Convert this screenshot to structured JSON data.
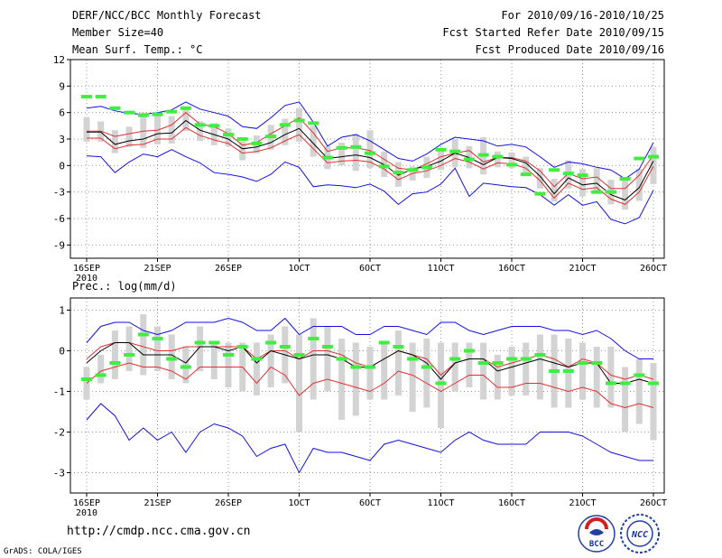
{
  "header": {
    "title": "DERF/NCC/BCC Monthly Forecast",
    "member_size": "Member Size=40",
    "forecast_range": "For 2010/09/16-2010/10/25",
    "fcst_started": "Fcst Started Refer Date 2010/09/15",
    "fcst_produced": "Fcst Produced Date 2010/09/16"
  },
  "footer": {
    "url": "http://cmdp.ncc.cma.gov.cn",
    "credit": "GrADS: COLA/IGES",
    "logo_left_text": "BCC",
    "logo_right_text": "NCC"
  },
  "colors": {
    "mean": "#000000",
    "ensemble_band": "#e03030",
    "extremes": "#1010e0",
    "observed": "#40ee40",
    "box": "#d3d3d3"
  },
  "chart_data": [
    {
      "type": "line",
      "title": "Mean Surf. Temp.: °C",
      "x_ticks": [
        "16SEP",
        "21SEP",
        "26SEP",
        "1OCT",
        "6OCT",
        "11OCT",
        "16OCT",
        "21OCT",
        "26OCT"
      ],
      "x_tick_index": [
        0,
        5,
        10,
        15,
        20,
        25,
        30,
        35,
        40
      ],
      "x_sublabel": "2010",
      "y_ticks": [
        12,
        9,
        6,
        3,
        0,
        -3,
        -6,
        -9
      ],
      "ylim": [
        -10.5,
        12
      ],
      "series": [
        {
          "name": "max",
          "color": "#1010e0",
          "values": [
            6.5,
            6.7,
            6.2,
            5.9,
            5.8,
            6.0,
            6.3,
            7.2,
            6.4,
            6.0,
            5.6,
            4.4,
            4.2,
            5.4,
            6.8,
            7.2,
            4.9,
            2.2,
            3.2,
            3.5,
            2.8,
            1.8,
            0.8,
            0.5,
            1.3,
            2.4,
            3.2,
            3.0,
            2.8,
            2.2,
            2.4,
            2.1,
            1.0,
            -0.2,
            0.4,
            0.2,
            -0.2,
            -0.5,
            -1.5,
            -0.4,
            2.6
          ]
        },
        {
          "name": "upper",
          "color": "#e03030",
          "values": [
            3.9,
            3.9,
            3.3,
            3.6,
            3.9,
            4.0,
            4.6,
            6.0,
            4.7,
            4.4,
            3.6,
            2.3,
            2.6,
            3.6,
            4.5,
            5.4,
            3.7,
            1.6,
            2.0,
            2.0,
            1.7,
            0.7,
            -0.3,
            -0.5,
            0.2,
            1.0,
            1.4,
            1.7,
            0.4,
            0.9,
            0.9,
            0.5,
            -0.6,
            -2.4,
            -0.9,
            -1.5,
            -1.3,
            -2.6,
            -2.6,
            -1.1,
            1.2
          ]
        },
        {
          "name": "mean",
          "color": "#000000",
          "values": [
            3.8,
            3.8,
            2.4,
            2.8,
            3.0,
            3.6,
            3.7,
            5.1,
            4.0,
            3.5,
            3.0,
            1.9,
            2.1,
            2.6,
            3.5,
            4.2,
            2.5,
            0.8,
            1.0,
            1.2,
            0.9,
            0.1,
            -1.1,
            -0.4,
            -0.1,
            0.5,
            1.4,
            0.9,
            0.1,
            0.9,
            0.8,
            0.3,
            -1.2,
            -3.2,
            -1.4,
            -2.2,
            -2.0,
            -3.3,
            -3.9,
            -2.5,
            0.5
          ]
        },
        {
          "name": "lower",
          "color": "#e03030",
          "values": [
            3.1,
            3.1,
            1.9,
            2.3,
            2.4,
            3.0,
            3.0,
            4.3,
            3.4,
            2.9,
            2.5,
            1.4,
            1.6,
            2.0,
            2.8,
            3.5,
            1.9,
            0.3,
            0.5,
            0.6,
            0.4,
            -0.4,
            -1.6,
            -0.9,
            -0.6,
            0.0,
            0.8,
            0.4,
            -0.4,
            0.3,
            0.2,
            -0.3,
            -1.7,
            -3.7,
            -2.0,
            -2.7,
            -2.5,
            -3.8,
            -4.4,
            -3.0,
            -0.1
          ]
        },
        {
          "name": "min",
          "color": "#1010e0",
          "values": [
            1.1,
            1.0,
            -0.8,
            0.4,
            1.3,
            1.0,
            1.8,
            1.0,
            0.3,
            -0.8,
            -1.0,
            -1.3,
            -1.8,
            -1.0,
            0.4,
            -0.2,
            -2.4,
            -2.2,
            -2.3,
            -2.5,
            -2.1,
            -2.9,
            -4.4,
            -3.2,
            -3.0,
            -2.1,
            -0.3,
            -3.5,
            -2.0,
            -2.2,
            -2.4,
            -2.5,
            -3.3,
            -4.5,
            -3.3,
            -4.5,
            -4.1,
            -6.1,
            -6.6,
            -5.9,
            -2.8
          ]
        },
        {
          "name": "observed",
          "color": "#40ee40",
          "values": [
            7.8,
            7.8,
            6.5,
            6.0,
            5.7,
            5.8,
            6.1,
            6.5,
            4.6,
            4.5,
            3.5,
            3.0,
            2.5,
            3.3,
            4.6,
            5.1,
            4.8,
            0.9,
            2.0,
            2.1,
            1.4,
            -0.1,
            -0.8,
            -0.5,
            -0.2,
            1.8,
            1.6,
            0.7,
            1.2,
            1.0,
            0.1,
            -1.0,
            -3.2,
            -0.5,
            -0.9,
            -1.1,
            -3.0,
            -3.0,
            -1.5,
            0.8,
            1.0
          ]
        },
        {
          "name": "box_high",
          "color": "#d3d3d3",
          "values": [
            5.5,
            5.0,
            4.0,
            4.4,
            6.0,
            6.0,
            5.6,
            6.6,
            5.0,
            4.8,
            4.2,
            2.7,
            3.4,
            4.6,
            5.3,
            6.5,
            4.5,
            2.2,
            2.6,
            3.6,
            4.0,
            1.6,
            0.4,
            -0.1,
            1.0,
            2.0,
            3.0,
            2.2,
            3.2,
            1.6,
            1.5,
            1.0,
            -0.3,
            -1.5,
            0.6,
            -0.4,
            -0.3,
            -1.6,
            -1.4,
            -0.4,
            2.1
          ]
        },
        {
          "name": "box_low",
          "color": "#d3d3d3",
          "values": [
            2.7,
            2.7,
            1.4,
            2.1,
            2.0,
            2.4,
            2.5,
            3.9,
            2.8,
            2.3,
            2.2,
            0.6,
            1.4,
            1.8,
            2.3,
            2.7,
            1.0,
            -0.4,
            0.0,
            -0.6,
            -0.3,
            -1.3,
            -2.4,
            -1.7,
            -1.4,
            -0.5,
            -0.2,
            -0.3,
            -1.0,
            -0.2,
            -0.3,
            -1.1,
            -2.6,
            -4.1,
            -2.6,
            -3.5,
            -3.0,
            -4.4,
            -5.0,
            -4.0,
            -2.1
          ]
        }
      ]
    },
    {
      "type": "line",
      "title": "Prec.: log(mm/d)",
      "x_ticks": [
        "16SEP",
        "21SEP",
        "26SEP",
        "1OCT",
        "6OCT",
        "11OCT",
        "16OCT",
        "21OCT",
        "26OCT"
      ],
      "x_tick_index": [
        0,
        5,
        10,
        15,
        20,
        25,
        30,
        35,
        40
      ],
      "x_sublabel": "2010",
      "y_ticks": [
        1,
        0,
        -1,
        -2,
        -3
      ],
      "ylim": [
        -3.5,
        1.3
      ],
      "series": [
        {
          "name": "max",
          "color": "#1010e0",
          "values": [
            0.2,
            0.6,
            0.7,
            0.7,
            0.5,
            0.4,
            0.5,
            0.7,
            0.7,
            0.7,
            0.8,
            0.7,
            0.5,
            0.5,
            0.8,
            0.4,
            0.6,
            0.6,
            0.6,
            0.4,
            0.4,
            0.6,
            0.6,
            0.5,
            0.4,
            0.7,
            0.7,
            0.5,
            0.4,
            0.5,
            0.6,
            0.6,
            0.6,
            0.5,
            0.5,
            0.4,
            0.5,
            0.3,
            0.0,
            -0.2,
            -0.2
          ]
        },
        {
          "name": "upper",
          "color": "#e03030",
          "values": [
            -0.2,
            0.1,
            0.2,
            0.2,
            0.1,
            0.0,
            0.0,
            0.1,
            0.1,
            0.1,
            0.1,
            0.1,
            -0.2,
            0.0,
            0.0,
            -0.2,
            0.0,
            0.0,
            -0.1,
            -0.3,
            -0.4,
            -0.2,
            0.0,
            -0.1,
            -0.2,
            -0.6,
            -0.3,
            -0.2,
            -0.2,
            -0.4,
            -0.3,
            -0.2,
            -0.1,
            -0.2,
            -0.4,
            -0.2,
            -0.3,
            -0.6,
            -0.7,
            -0.6,
            -0.7
          ]
        },
        {
          "name": "mean",
          "color": "#000000",
          "values": [
            -0.3,
            0.0,
            0.2,
            0.2,
            -0.1,
            -0.1,
            -0.1,
            -0.3,
            0.1,
            0.1,
            0.0,
            0.1,
            -0.3,
            0.0,
            -0.1,
            -0.2,
            -0.1,
            -0.1,
            -0.2,
            -0.4,
            -0.4,
            -0.2,
            0.0,
            -0.1,
            -0.3,
            -0.7,
            -0.3,
            -0.2,
            -0.2,
            -0.5,
            -0.4,
            -0.3,
            -0.2,
            -0.3,
            -0.4,
            -0.3,
            -0.3,
            -0.8,
            -0.8,
            -0.7,
            -0.8
          ]
        },
        {
          "name": "lower",
          "color": "#e03030",
          "values": [
            -0.8,
            -0.5,
            -0.4,
            -0.3,
            -0.4,
            -0.4,
            -0.5,
            -0.7,
            -0.4,
            -0.4,
            -0.4,
            -0.4,
            -0.8,
            -0.4,
            -0.6,
            -1.1,
            -0.8,
            -0.7,
            -0.8,
            -0.9,
            -1.0,
            -0.8,
            -0.5,
            -0.6,
            -0.8,
            -1.0,
            -0.8,
            -0.6,
            -0.6,
            -0.9,
            -0.9,
            -0.8,
            -0.8,
            -0.9,
            -1.0,
            -0.9,
            -1.0,
            -1.3,
            -1.4,
            -1.3,
            -1.4
          ]
        },
        {
          "name": "min",
          "color": "#1010e0",
          "values": [
            -1.7,
            -1.3,
            -1.6,
            -2.2,
            -1.9,
            -2.2,
            -2.0,
            -2.5,
            -2.0,
            -1.8,
            -1.9,
            -2.1,
            -2.6,
            -2.4,
            -2.3,
            -3.0,
            -2.4,
            -2.5,
            -2.5,
            -2.6,
            -2.7,
            -2.3,
            -2.2,
            -2.3,
            -2.4,
            -2.5,
            -2.2,
            -2.0,
            -2.2,
            -2.3,
            -2.3,
            -2.3,
            -2.0,
            -2.0,
            -2.0,
            -2.1,
            -2.3,
            -2.5,
            -2.6,
            -2.7,
            -2.7
          ]
        },
        {
          "name": "observed",
          "color": "#40ee40",
          "values": [
            -0.7,
            -0.6,
            -0.3,
            -0.1,
            0.4,
            0.3,
            -0.2,
            -0.4,
            0.2,
            0.2,
            -0.1,
            0.1,
            -0.2,
            0.2,
            0.1,
            -0.1,
            0.3,
            0.1,
            -0.2,
            -0.4,
            -0.4,
            0.2,
            0.1,
            -0.2,
            -0.4,
            -0.8,
            -0.2,
            0.0,
            -0.3,
            -0.3,
            -0.2,
            -0.2,
            -0.1,
            -0.5,
            -0.5,
            -0.3,
            -0.3,
            -0.8,
            -0.8,
            -0.6,
            -0.8
          ]
        },
        {
          "name": "box_high",
          "color": "#d3d3d3",
          "values": [
            -0.4,
            -0.1,
            0.5,
            0.6,
            0.9,
            0.6,
            0.4,
            0.1,
            0.6,
            0.2,
            0.2,
            0.2,
            0.2,
            0.4,
            0.6,
            0.4,
            0.8,
            0.6,
            0.3,
            0.2,
            0.1,
            0.2,
            0.5,
            0.2,
            0.3,
            0.2,
            0.2,
            0.2,
            0.2,
            -0.1,
            0.1,
            0.2,
            0.4,
            0.4,
            0.3,
            0.2,
            0.1,
            0.1,
            -0.4,
            -0.2,
            -0.3
          ]
        },
        {
          "name": "box_low",
          "color": "#d3d3d3",
          "values": [
            -1.2,
            -0.8,
            -0.7,
            -0.5,
            -0.6,
            -0.5,
            -0.7,
            -0.8,
            -0.5,
            -0.7,
            -0.9,
            -1.0,
            -1.1,
            -0.9,
            -0.8,
            -2.0,
            -1.2,
            -1.0,
            -1.7,
            -1.6,
            -1.2,
            -1.2,
            -1.1,
            -1.5,
            -1.4,
            -1.9,
            -1.0,
            -0.9,
            -1.2,
            -1.2,
            -1.1,
            -1.1,
            -1.2,
            -1.4,
            -1.4,
            -1.2,
            -1.4,
            -1.4,
            -2.0,
            -1.8,
            -2.2
          ]
        }
      ]
    }
  ]
}
